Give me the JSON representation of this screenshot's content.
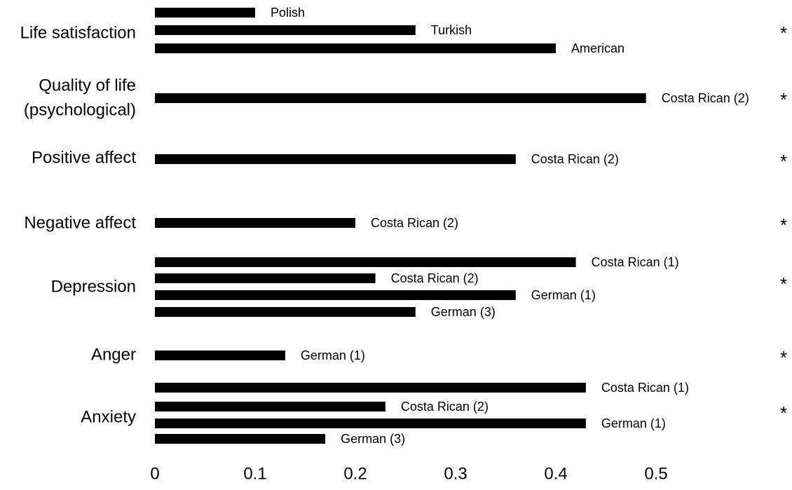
{
  "chart_data": {
    "type": "bar",
    "orientation": "horizontal",
    "xlim": [
      0,
      0.5
    ],
    "xticks": [
      "0",
      "0.1",
      "0.2",
      "0.3",
      "0.4",
      "0.5"
    ],
    "grid": false,
    "bar_color": "#000000",
    "groups": [
      {
        "label": "Life satisfaction",
        "significance": "*",
        "bars": [
          {
            "name": "Polish",
            "value": 0.1
          },
          {
            "name": "Turkish",
            "value": 0.26
          },
          {
            "name": "American",
            "value": 0.4
          }
        ]
      },
      {
        "label": "Quality of life (psychological)",
        "label_lines": [
          "Quality of life",
          "(psychological)"
        ],
        "significance": "*",
        "bars": [
          {
            "name": "Costa Rican (2)",
            "value": 0.49
          }
        ]
      },
      {
        "label": "Positive affect",
        "significance": "*",
        "bars": [
          {
            "name": "Costa Rican (2)",
            "value": 0.36
          }
        ]
      },
      {
        "label": "Negative affect",
        "significance": "*",
        "bars": [
          {
            "name": "Costa Rican (2)",
            "value": 0.2
          }
        ]
      },
      {
        "label": "Depression",
        "significance": "*",
        "bars": [
          {
            "name": "Costa Rican (1)",
            "value": 0.42
          },
          {
            "name": "Costa Rican (2)",
            "value": 0.22
          },
          {
            "name": "German (1)",
            "value": 0.36
          },
          {
            "name": "German (3)",
            "value": 0.26
          }
        ]
      },
      {
        "label": "Anger",
        "significance": "*",
        "bars": [
          {
            "name": "German (1)",
            "value": 0.13
          }
        ]
      },
      {
        "label": "Anxiety",
        "significance": "*",
        "bars": [
          {
            "name": "Costa Rican (1)",
            "value": 0.43
          },
          {
            "name": "Costa Rican (2)",
            "value": 0.23
          },
          {
            "name": "German (1)",
            "value": 0.43
          },
          {
            "name": "German (3)",
            "value": 0.17
          }
        ]
      }
    ]
  }
}
